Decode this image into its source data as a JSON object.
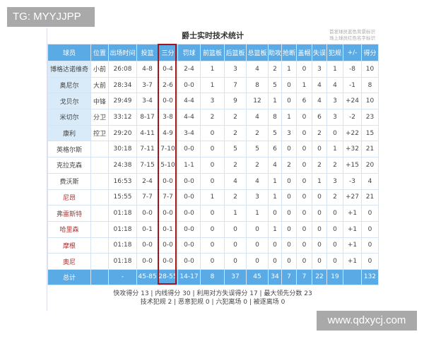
{
  "watermarks": {
    "top_left": "TG: MYYJJPP",
    "bottom_right": "www.qdxycj.com"
  },
  "title": "爵士实时技术统计",
  "legend_note": [
    "首发球员蓝色背景标识",
    "场上球员红色名字标识"
  ],
  "columns": [
    "球员",
    "位置",
    "出场时间",
    "投篮",
    "三分",
    "罚球",
    "前篮板",
    "后篮板",
    "总篮板",
    "助攻",
    "抢断",
    "盖帽",
    "失误",
    "犯规",
    "+/-",
    "得分"
  ],
  "highlight_color": "#a3151b",
  "rows": [
    [
      "博格达诺维奇",
      "小前",
      "26:08",
      "4-8",
      "0-4",
      "2-4",
      "1",
      "3",
      "4",
      "2",
      "1",
      "0",
      "3",
      "1",
      "-8",
      "10"
    ],
    [
      "奥尼尔",
      "大前",
      "28:34",
      "3-7",
      "2-6",
      "0-0",
      "1",
      "7",
      "8",
      "5",
      "0",
      "1",
      "4",
      "4",
      "-1",
      "8"
    ],
    [
      "戈贝尔",
      "中锋",
      "29:49",
      "3-4",
      "0-0",
      "4-4",
      "3",
      "9",
      "12",
      "1",
      "0",
      "6",
      "4",
      "3",
      "+24",
      "10"
    ],
    [
      "米切尔",
      "分卫",
      "33:12",
      "8-17",
      "3-8",
      "4-4",
      "2",
      "2",
      "4",
      "8",
      "1",
      "0",
      "6",
      "3",
      "-2",
      "23"
    ],
    [
      "康利",
      "控卫",
      "29:20",
      "4-11",
      "4-9",
      "3-4",
      "0",
      "2",
      "2",
      "5",
      "3",
      "0",
      "2",
      "0",
      "+22",
      "15"
    ],
    [
      "英格尔斯",
      "",
      "30:18",
      "7-11",
      "7-10",
      "0-0",
      "0",
      "5",
      "5",
      "6",
      "0",
      "0",
      "0",
      "1",
      "+32",
      "21"
    ],
    [
      "克拉克森",
      "",
      "24:38",
      "7-15",
      "5-10",
      "1-1",
      "0",
      "2",
      "2",
      "4",
      "2",
      "0",
      "2",
      "2",
      "+15",
      "20"
    ],
    [
      "费沃斯",
      "",
      "16:53",
      "2-4",
      "0-0",
      "0-0",
      "0",
      "4",
      "4",
      "1",
      "0",
      "0",
      "1",
      "3",
      "-3",
      "4"
    ],
    [
      "尼昂",
      "",
      "15:55",
      "7-7",
      "7-7",
      "0-0",
      "1",
      "2",
      "3",
      "1",
      "0",
      "0",
      "0",
      "2",
      "+27",
      "21"
    ],
    [
      "弗雷斯特",
      "",
      "01:18",
      "0-0",
      "0-0",
      "0-0",
      "0",
      "1",
      "1",
      "0",
      "0",
      "0",
      "0",
      "0",
      "+1",
      "0"
    ],
    [
      "哈里森",
      "",
      "01:18",
      "0-1",
      "0-1",
      "0-0",
      "0",
      "0",
      "0",
      "1",
      "0",
      "0",
      "0",
      "0",
      "+1",
      "0"
    ],
    [
      "摩根",
      "",
      "01:18",
      "0-0",
      "0-0",
      "0-0",
      "0",
      "0",
      "0",
      "0",
      "0",
      "0",
      "0",
      "0",
      "+1",
      "0"
    ],
    [
      "奥尼",
      "",
      "01:18",
      "0-0",
      "0-0",
      "0-0",
      "0",
      "0",
      "0",
      "0",
      "0",
      "0",
      "0",
      "0",
      "+1",
      "0"
    ]
  ],
  "starters": [
    0,
    1,
    2,
    3,
    4
  ],
  "on_court": [
    8,
    9,
    10,
    11,
    12
  ],
  "total": [
    "总计",
    "",
    "-",
    "45-85",
    "28-55",
    "14-17",
    "8",
    "37",
    "45",
    "34",
    "7",
    "7",
    "22",
    "19",
    "",
    "132"
  ],
  "footer": [
    "快攻得分 13 | 内线得分 30 | 利用对方失误得分 17 | 最大领先分数 23",
    "技术犯规 2 | 恶意犯规 0 | 六犯离场 0 | 被逐离场 0"
  ]
}
